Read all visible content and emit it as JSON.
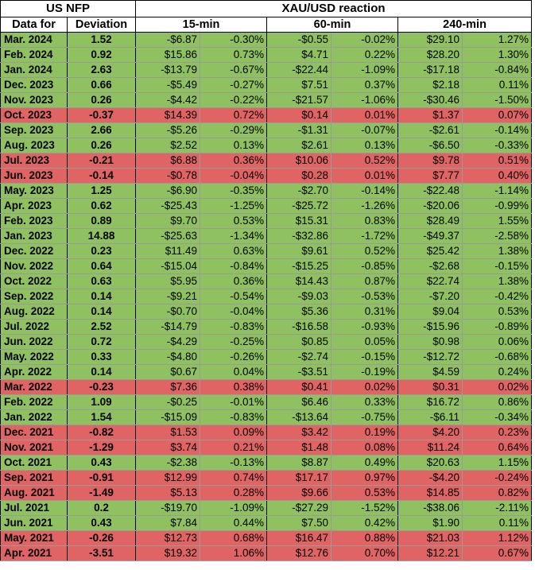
{
  "header": {
    "us_nfp": "US NFP",
    "reaction": "XAU/USD reaction",
    "data_for": "Data for",
    "deviation": "Deviation",
    "min15": "15-min",
    "min60": "60-min",
    "min240": "240-min"
  },
  "colors": {
    "positive": "#8fc160",
    "negative": "#e06464"
  },
  "rows": [
    {
      "date": "Mar. 2024",
      "dev": "1.52",
      "d15": "-$6.87",
      "p15": "-0.30%",
      "d60": "-$0.55",
      "p60": "-0.02%",
      "d240": "$29.10",
      "p240": "1.27%",
      "color": "green"
    },
    {
      "date": "Feb. 2024",
      "dev": "0.92",
      "d15": "$15.86",
      "p15": "0.73%",
      "d60": "$4.71",
      "p60": "0.22%",
      "d240": "$28.20",
      "p240": "1.30%",
      "color": "green"
    },
    {
      "date": "Jan. 2024",
      "dev": "2.63",
      "d15": "-$13.79",
      "p15": "-0.67%",
      "d60": "-$22.44",
      "p60": "-1.09%",
      "d240": "-$17.18",
      "p240": "-0.84%",
      "color": "green"
    },
    {
      "date": "Dec. 2023",
      "dev": "0.66",
      "d15": "-$5.49",
      "p15": "-0.27%",
      "d60": "$7.51",
      "p60": "0.37%",
      "d240": "$2.18",
      "p240": "0.11%",
      "color": "green"
    },
    {
      "date": "Nov. 2023",
      "dev": "0.26",
      "d15": "-$4.42",
      "p15": "-0.22%",
      "d60": "-$21.57",
      "p60": "-1.06%",
      "d240": "-$30.46",
      "p240": "-1.50%",
      "color": "green"
    },
    {
      "date": "Oct. 2023",
      "dev": "-0.37",
      "d15": "$14.39",
      "p15": "0.72%",
      "d60": "$0.14",
      "p60": "0.01%",
      "d240": "$1.37",
      "p240": "0.07%",
      "color": "red"
    },
    {
      "date": "Sep. 2023",
      "dev": "2.66",
      "d15": "-$5.26",
      "p15": "-0.29%",
      "d60": "-$1.31",
      "p60": "-0.07%",
      "d240": "-$2.61",
      "p240": "-0.14%",
      "color": "green"
    },
    {
      "date": "Aug. 2023",
      "dev": "0.26",
      "d15": "$2.52",
      "p15": "0.13%",
      "d60": "$2.61",
      "p60": "0.13%",
      "d240": "-$6.50",
      "p240": "-0.33%",
      "color": "green"
    },
    {
      "date": "Jul. 2023",
      "dev": "-0.21",
      "d15": "$6.88",
      "p15": "0.36%",
      "d60": "$10.06",
      "p60": "0.52%",
      "d240": "$9.78",
      "p240": "0.51%",
      "color": "red"
    },
    {
      "date": "Jun. 2023",
      "dev": "-0.14",
      "d15": "-$0.78",
      "p15": "-0.04%",
      "d60": "$0.28",
      "p60": "0.01%",
      "d240": "$7.77",
      "p240": "0.40%",
      "color": "red"
    },
    {
      "date": "May. 2023",
      "dev": "1.25",
      "d15": "-$6.90",
      "p15": "-0.35%",
      "d60": "-$2.70",
      "p60": "-0.14%",
      "d240": "-$22.48",
      "p240": "-1.14%",
      "color": "green"
    },
    {
      "date": "Apr. 2023",
      "dev": "0.62",
      "d15": "-$25.43",
      "p15": "-1.25%",
      "d60": "-$25.72",
      "p60": "-1.26%",
      "d240": "-$20.06",
      "p240": "-0.99%",
      "color": "green"
    },
    {
      "date": "Feb. 2023",
      "dev": "0.89",
      "d15": "$9.70",
      "p15": "0.53%",
      "d60": "$15.31",
      "p60": "0.83%",
      "d240": "$28.49",
      "p240": "1.55%",
      "color": "green"
    },
    {
      "date": "Jan. 2023",
      "dev": "14.88",
      "d15": "-$25.63",
      "p15": "-1.34%",
      "d60": "-$32.86",
      "p60": "-1.72%",
      "d240": "-$49.37",
      "p240": "-2.58%",
      "color": "green"
    },
    {
      "date": "Dec. 2022",
      "dev": "0.23",
      "d15": "$11.49",
      "p15": "0.63%",
      "d60": "$9.61",
      "p60": "0.52%",
      "d240": "$25.42",
      "p240": "1.38%",
      "color": "green"
    },
    {
      "date": "Nov. 2022",
      "dev": "0.64",
      "d15": "-$15.04",
      "p15": "-0.84%",
      "d60": "-$15.25",
      "p60": "-0.85%",
      "d240": "-$2.68",
      "p240": "-0.15%",
      "color": "green"
    },
    {
      "date": "Oct. 2022",
      "dev": "0.63",
      "d15": "$5.95",
      "p15": "0.36%",
      "d60": "$14.43",
      "p60": "0.87%",
      "d240": "$22.74",
      "p240": "1.38%",
      "color": "green"
    },
    {
      "date": "Sep. 2022",
      "dev": "0.14",
      "d15": "-$9.21",
      "p15": "-0.54%",
      "d60": "-$9.03",
      "p60": "-0.53%",
      "d240": "-$7.20",
      "p240": "-0.42%",
      "color": "green"
    },
    {
      "date": "Aug. 2022",
      "dev": "0.14",
      "d15": "-$0.70",
      "p15": "-0.04%",
      "d60": "$5.36",
      "p60": "0.31%",
      "d240": "$9.04",
      "p240": "0.53%",
      "color": "green"
    },
    {
      "date": "Jul. 2022",
      "dev": "2.52",
      "d15": "-$14.79",
      "p15": "-0.83%",
      "d60": "-$16.58",
      "p60": "-0.93%",
      "d240": "-$15.96",
      "p240": "-0.89%",
      "color": "green"
    },
    {
      "date": "Jun. 2022",
      "dev": "0.72",
      "d15": "-$4.29",
      "p15": "-0.25%",
      "d60": "$0.85",
      "p60": "0.05%",
      "d240": "$0.98",
      "p240": "0.06%",
      "color": "green"
    },
    {
      "date": "May. 2022",
      "dev": "0.33",
      "d15": "-$4.80",
      "p15": "-0.26%",
      "d60": "-$2.74",
      "p60": "-0.15%",
      "d240": "-$12.72",
      "p240": "-0.68%",
      "color": "green"
    },
    {
      "date": "Apr. 2022",
      "dev": "0.14",
      "d15": "$0.67",
      "p15": "0.04%",
      "d60": "-$3.51",
      "p60": "-0.19%",
      "d240": "$4.59",
      "p240": "0.24%",
      "color": "green"
    },
    {
      "date": "Mar. 2022",
      "dev": "-0.23",
      "d15": "$7.36",
      "p15": "0.38%",
      "d60": "$0.41",
      "p60": "0.02%",
      "d240": "$0.31",
      "p240": "0.02%",
      "color": "red"
    },
    {
      "date": "Feb. 2022",
      "dev": "1.09",
      "d15": "-$0.25",
      "p15": "-0.01%",
      "d60": "$6.46",
      "p60": "0.33%",
      "d240": "$16.72",
      "p240": "0.86%",
      "color": "green"
    },
    {
      "date": "Jan. 2022",
      "dev": "1.54",
      "d15": "-$15.09",
      "p15": "-0.83%",
      "d60": "-$13.64",
      "p60": "-0.75%",
      "d240": "-$6.11",
      "p240": "-0.34%",
      "color": "green"
    },
    {
      "date": "Dec. 2021",
      "dev": "-0.82",
      "d15": "$1.53",
      "p15": "0.09%",
      "d60": "$3.42",
      "p60": "0.19%",
      "d240": "$4.20",
      "p240": "0.23%",
      "color": "red"
    },
    {
      "date": "Nov. 2021",
      "dev": "-1.29",
      "d15": "$3.74",
      "p15": "0.21%",
      "d60": "$1.48",
      "p60": "0.08%",
      "d240": "$11.24",
      "p240": "0.64%",
      "color": "red"
    },
    {
      "date": "Oct. 2021",
      "dev": "0.43",
      "d15": "-$2.38",
      "p15": "-0.13%",
      "d60": "$8.87",
      "p60": "0.49%",
      "d240": "$20.63",
      "p240": "1.15%",
      "color": "green"
    },
    {
      "date": "Sep. 2021",
      "dev": "-0.91",
      "d15": "$12.99",
      "p15": "0.74%",
      "d60": "$17.17",
      "p60": "0.97%",
      "d240": "-$4.20",
      "p240": "-0.24%",
      "color": "red"
    },
    {
      "date": "Aug. 2021",
      "dev": "-1.49",
      "d15": "$5.13",
      "p15": "0.28%",
      "d60": "$9.66",
      "p60": "0.53%",
      "d240": "$14.85",
      "p240": "0.82%",
      "color": "red"
    },
    {
      "date": "Jul. 2021",
      "dev": "0.2",
      "d15": "-$19.70",
      "p15": "-1.09%",
      "d60": "-$27.29",
      "p60": "-1.52%",
      "d240": "-$38.06",
      "p240": "-2.11%",
      "color": "green"
    },
    {
      "date": "Jun. 2021",
      "dev": "0.43",
      "d15": "$7.84",
      "p15": "0.44%",
      "d60": "$7.50",
      "p60": "0.42%",
      "d240": "$1.90",
      "p240": "0.11%",
      "color": "green"
    },
    {
      "date": "May. 2021",
      "dev": "-0.26",
      "d15": "$12.73",
      "p15": "0.68%",
      "d60": "$16.47",
      "p60": "0.88%",
      "d240": "$21.03",
      "p240": "1.12%",
      "color": "red"
    },
    {
      "date": "Apr. 2021",
      "dev": "-3.51",
      "d15": "$19.32",
      "p15": "1.06%",
      "d60": "$12.76",
      "p60": "0.70%",
      "d240": "$12.21",
      "p240": "0.67%",
      "color": "red"
    }
  ]
}
